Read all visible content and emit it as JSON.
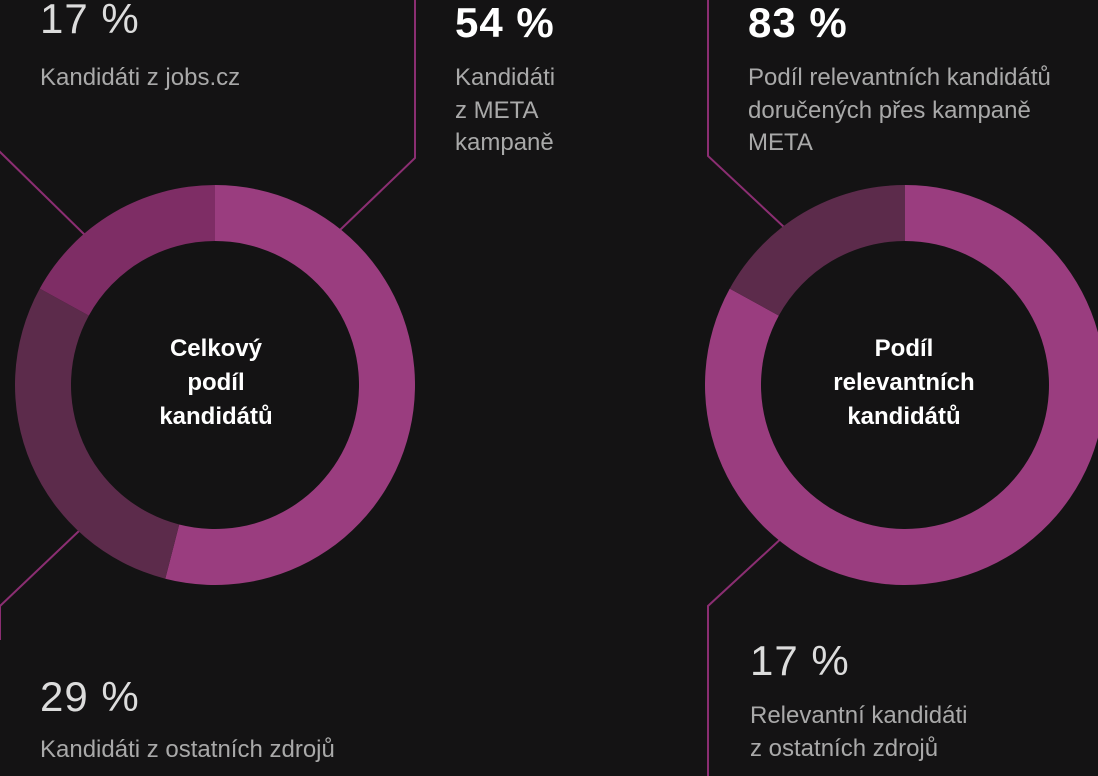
{
  "colors": {
    "background": "#141314",
    "connector": "#8b2e72",
    "meta": "#9a3d7f",
    "jobs": "#7e2d65",
    "other": "#5c2b4b"
  },
  "chart_data": [
    {
      "type": "pie",
      "variant": "donut",
      "center_label": "Celkový\npodíl\nkandidátů",
      "categories": [
        "Kandidáti z META kampaně",
        "Kandidáti z ostatních zdrojů",
        "Kandidáti z jobs.cz"
      ],
      "values": [
        54,
        29,
        17
      ],
      "unit": "%"
    },
    {
      "type": "pie",
      "variant": "donut",
      "center_label": "Podíl\nrelevantních\nkandidátů",
      "categories": [
        "Podíl relevantních kandidátů doručených přes kampaně META",
        "Relevantní kandidáti z ostatních zdrojů"
      ],
      "values": [
        83,
        17
      ],
      "unit": "%"
    }
  ],
  "stats": {
    "jobs": {
      "value": "17 %",
      "label": "Kandidáti z jobs.cz"
    },
    "meta": {
      "value": "54 %",
      "label": "Kandidáti\nz META\nkampaně"
    },
    "other": {
      "value": "29 %",
      "label": "Kandidáti z ostatních zdrojů"
    },
    "relevant_meta": {
      "value": "83 %",
      "label": "Podíl relevantních kandidátů\ndoručených přes kampaně\nMETA"
    },
    "relevant_other": {
      "value": "17 %",
      "label": "Relevantní kandidáti\nz ostatních zdrojů"
    }
  }
}
